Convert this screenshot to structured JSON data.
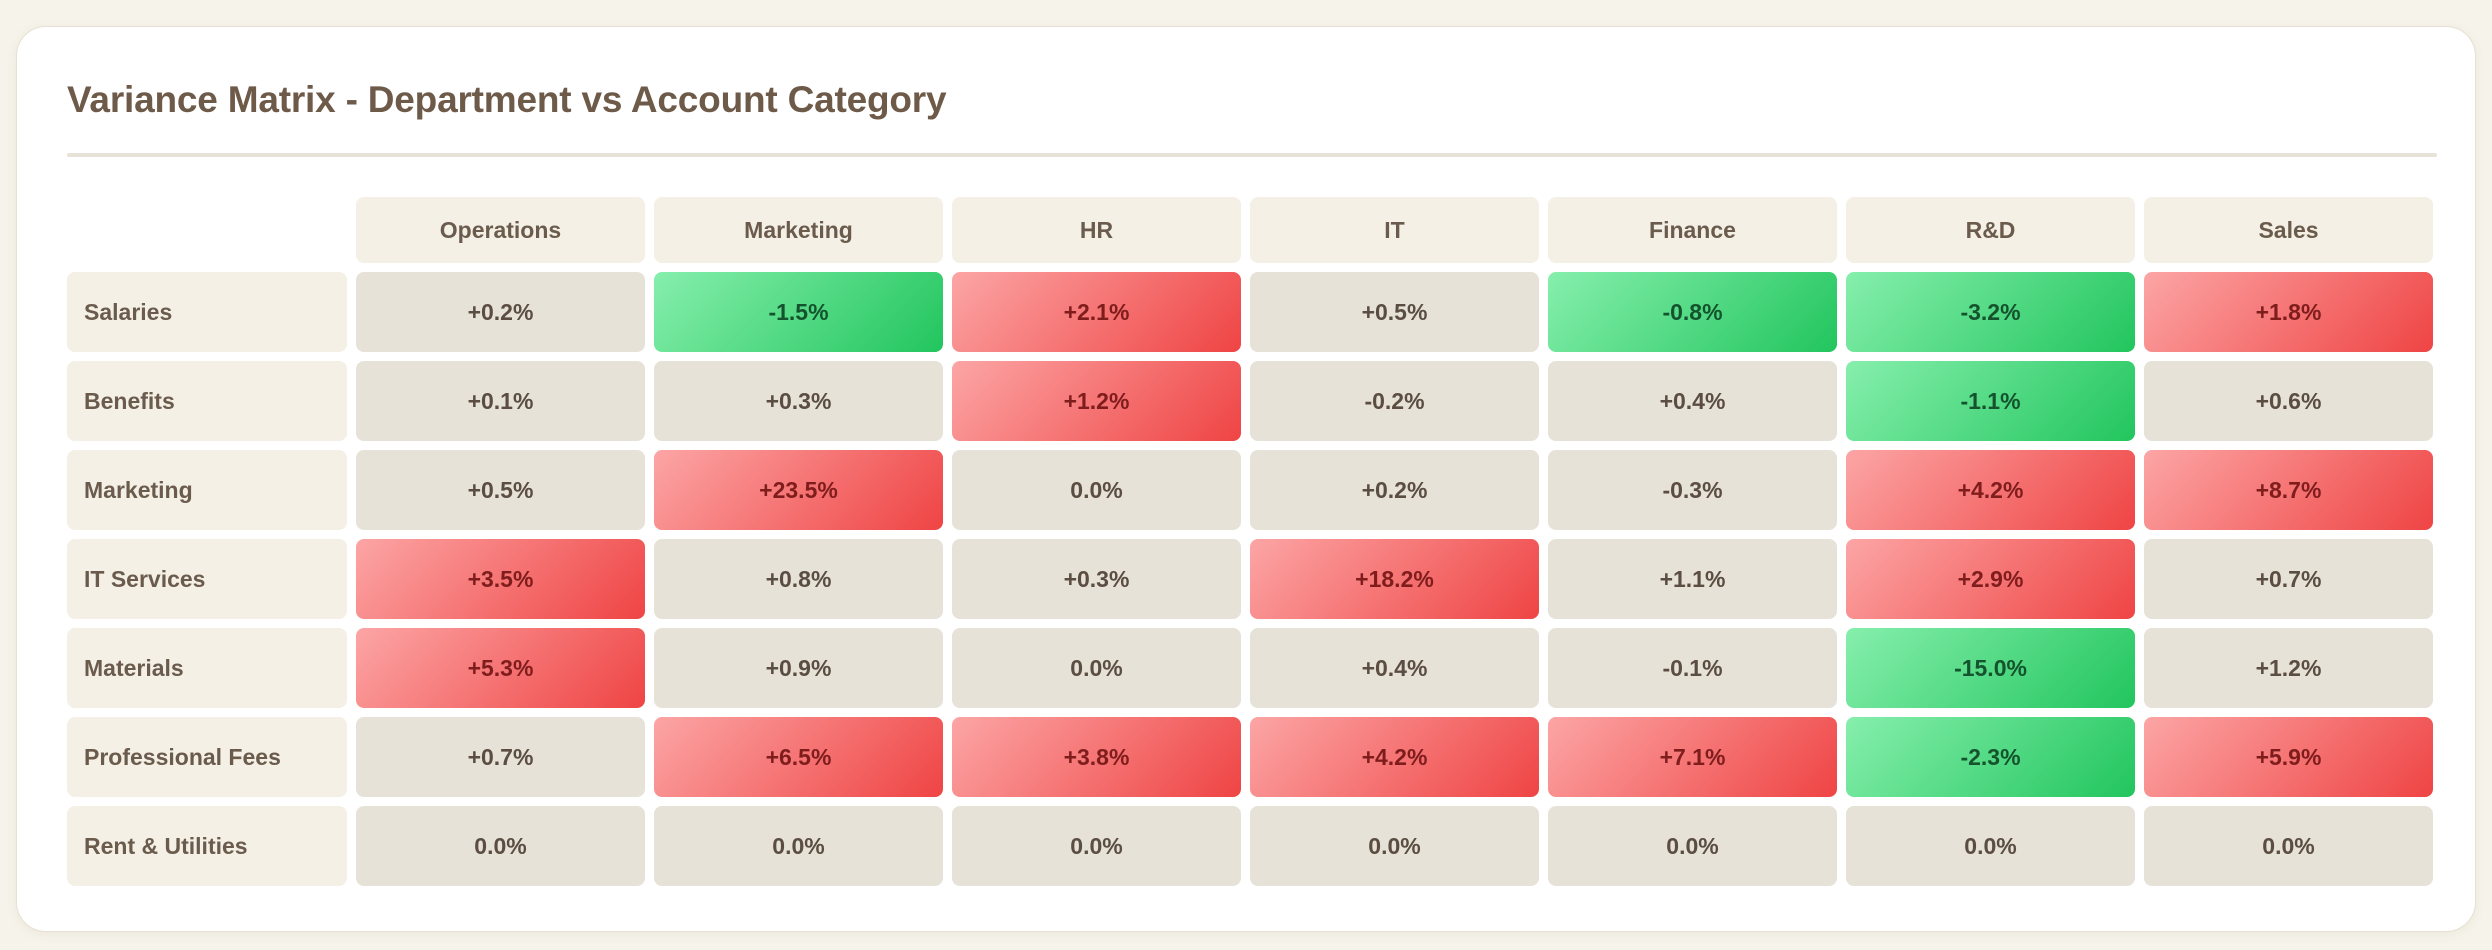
{
  "chart_data": {
    "type": "heatmap",
    "title": "Variance Matrix - Department vs Account Category",
    "columns": [
      "Operations",
      "Marketing",
      "HR",
      "IT",
      "Finance",
      "R&D",
      "Sales"
    ],
    "rows": [
      "Salaries",
      "Benefits",
      "Marketing",
      "IT Services",
      "Materials",
      "Professional Fees",
      "Rent & Utilities"
    ],
    "values": [
      [
        0.2,
        -1.5,
        2.1,
        0.5,
        -0.8,
        -3.2,
        1.8
      ],
      [
        0.1,
        0.3,
        1.2,
        -0.2,
        0.4,
        -1.1,
        0.6
      ],
      [
        0.5,
        23.5,
        0.0,
        0.2,
        -0.3,
        4.2,
        8.7
      ],
      [
        3.5,
        0.8,
        0.3,
        18.2,
        1.1,
        2.9,
        0.7
      ],
      [
        5.3,
        0.9,
        0.0,
        0.4,
        -0.1,
        -15.0,
        1.2
      ],
      [
        0.7,
        6.5,
        3.8,
        4.2,
        7.1,
        -2.3,
        5.9
      ],
      [
        0.0,
        0.0,
        0.0,
        0.0,
        0.0,
        0.0,
        0.0
      ]
    ],
    "labels": [
      [
        "+0.2%",
        "-1.5%",
        "+2.1%",
        "+0.5%",
        "-0.8%",
        "-3.2%",
        "+1.8%"
      ],
      [
        "+0.1%",
        "+0.3%",
        "+1.2%",
        "-0.2%",
        "+0.4%",
        "-1.1%",
        "+0.6%"
      ],
      [
        "+0.5%",
        "+23.5%",
        "0.0%",
        "+0.2%",
        "-0.3%",
        "+4.2%",
        "+8.7%"
      ],
      [
        "+3.5%",
        "+0.8%",
        "+0.3%",
        "+18.2%",
        "+1.1%",
        "+2.9%",
        "+0.7%"
      ],
      [
        "+5.3%",
        "+0.9%",
        "0.0%",
        "+0.4%",
        "-0.1%",
        "-15.0%",
        "+1.2%"
      ],
      [
        "+0.7%",
        "+6.5%",
        "+3.8%",
        "+4.2%",
        "+7.1%",
        "-2.3%",
        "+5.9%"
      ],
      [
        "0.0%",
        "0.0%",
        "0.0%",
        "0.0%",
        "0.0%",
        "0.0%",
        "0.0%"
      ]
    ],
    "highlight": [
      [
        0,
        -1,
        1,
        0,
        -1,
        -1,
        1
      ],
      [
        0,
        0,
        1,
        0,
        0,
        -1,
        0
      ],
      [
        0,
        1,
        0,
        0,
        0,
        1,
        1
      ],
      [
        1,
        0,
        0,
        1,
        0,
        1,
        0
      ],
      [
        1,
        0,
        0,
        0,
        0,
        -1,
        0
      ],
      [
        0,
        1,
        1,
        1,
        1,
        -1,
        1
      ],
      [
        0,
        0,
        0,
        0,
        0,
        0,
        0
      ]
    ],
    "colors": {
      "neutral": "#e6e2d7",
      "favorable": "#22c55e",
      "unfavorable": "#ef4444",
      "header": "#f4f0e5"
    }
  }
}
